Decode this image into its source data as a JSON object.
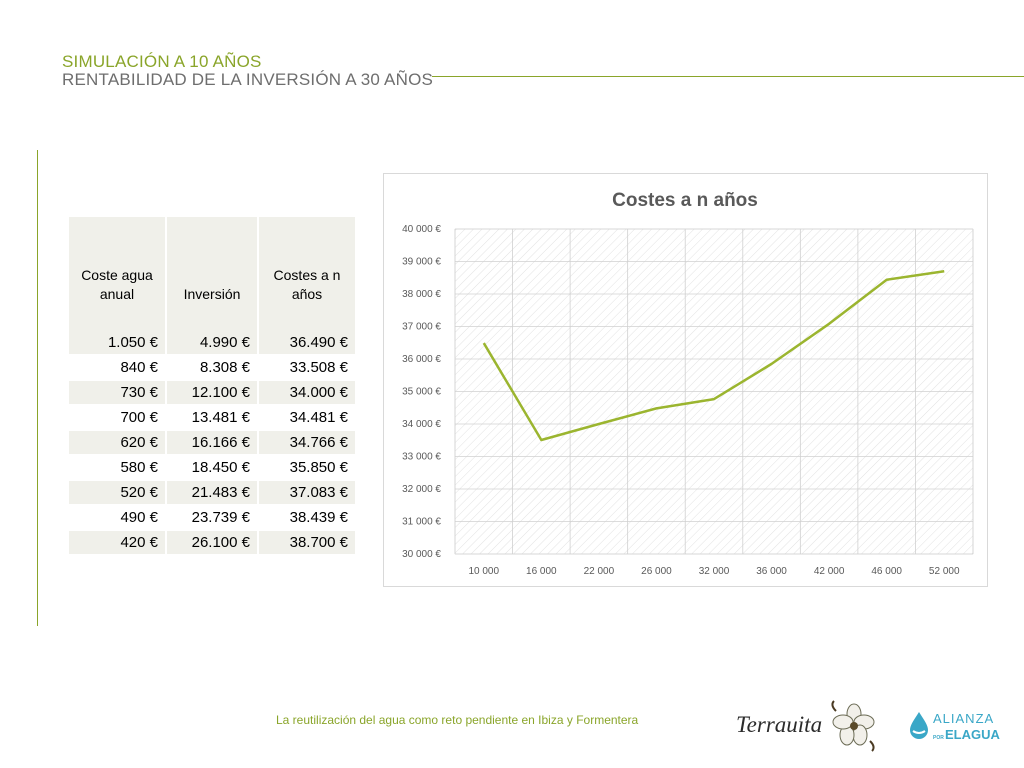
{
  "header": {
    "title": "SIMULACIÓN A 10 AÑOS",
    "subtitle": "RENTABILIDAD DE LA INVERSIÓN A 30 AÑOS"
  },
  "table": {
    "headers": [
      "Coste agua anual",
      "Inversión",
      "Costes a n años"
    ],
    "rows": [
      [
        "1.050 €",
        "4.990 €",
        "36.490 €"
      ],
      [
        "840 €",
        "8.308 €",
        "33.508 €"
      ],
      [
        "730 €",
        "12.100 €",
        "34.000 €"
      ],
      [
        "700 €",
        "13.481 €",
        "34.481 €"
      ],
      [
        "620 €",
        "16.166 €",
        "34.766 €"
      ],
      [
        "580 €",
        "18.450 €",
        "35.850 €"
      ],
      [
        "520 €",
        "21.483 €",
        "37.083 €"
      ],
      [
        "490 €",
        "23.739 €",
        "38.439 €"
      ],
      [
        "420 €",
        "26.100 €",
        "38.700 €"
      ]
    ]
  },
  "chart_data": {
    "type": "line",
    "title": "Costes a n años",
    "xlabel": "",
    "ylabel": "",
    "x": [
      4990,
      8308,
      12100,
      13481,
      16166,
      18450,
      21483,
      23739,
      26100
    ],
    "y": [
      36490,
      33508,
      34000,
      34481,
      34766,
      35850,
      37083,
      38439,
      38700
    ],
    "x_tick_labels": [
      "10 000",
      "16 000",
      "22 000",
      "26 000",
      "32 000",
      "36 000",
      "42 000",
      "46 000",
      "52 000"
    ],
    "y_tick_labels": [
      "30 000 €",
      "31 000 €",
      "32 000 €",
      "33 000 €",
      "34 000 €",
      "35 000 €",
      "36 000 €",
      "37 000 €",
      "38 000 €",
      "39 000 €",
      "40 000 €"
    ],
    "ylim": [
      30000,
      40000
    ],
    "grid": true,
    "series_color": "#9bb52f"
  },
  "footer": {
    "caption": "La reutilización del agua como reto pendiente en Ibiza y Formentera",
    "logo_terrauita": "Terrauita",
    "logo_alianza_top": "ALIANZA",
    "logo_alianza_small": "POR",
    "logo_alianza_bottom": "ELAGUA"
  },
  "colors": {
    "accent_green": "#8aa52a",
    "subtitle_gray": "#6e6e6e",
    "alianza_blue": "#3aa7c7"
  }
}
